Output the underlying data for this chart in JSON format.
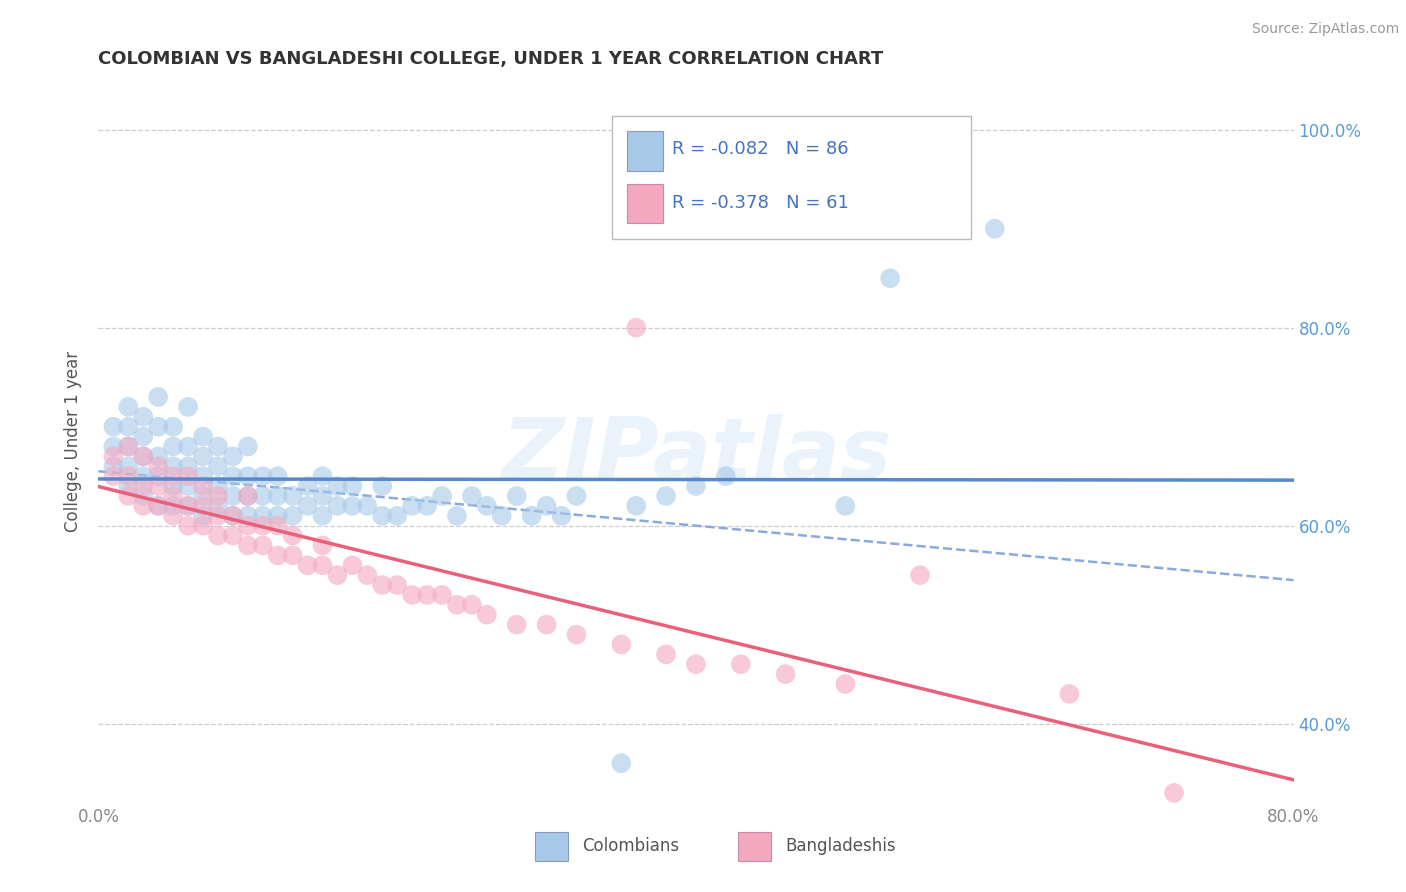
{
  "title": "COLOMBIAN VS BANGLADESHI COLLEGE, UNDER 1 YEAR CORRELATION CHART",
  "source": "Source: ZipAtlas.com",
  "ylabel": "College, Under 1 year",
  "xlim_min": 0.0,
  "xlim_max": 0.8,
  "ylim_min": 0.32,
  "ylim_max": 1.05,
  "yticks": [
    0.4,
    0.6,
    0.8,
    1.0
  ],
  "right_yticklabels": [
    "40.0%",
    "60.0%",
    "80.0%",
    "100.0%"
  ],
  "colombian_R": -0.082,
  "colombian_N": 86,
  "bangladeshi_R": -0.378,
  "bangladeshi_N": 61,
  "colombian_color": "#a8c8e8",
  "bangladeshi_color": "#f4a8c0",
  "colombian_line_color": "#5588cc",
  "bangladeshi_line_color": "#e8607a",
  "dashed_line_color": "#88aadd",
  "watermark": "ZIPatlas",
  "background_color": "#ffffff",
  "grid_color": "#cccccc",
  "right_tick_color": "#5b9bd5",
  "legend_text_color": "#4472c4",
  "title_color": "#333333",
  "source_color": "#999999",
  "axis_label_color": "#555555",
  "tick_label_color": "#888888",
  "col_scatter_x": [
    0.01,
    0.01,
    0.01,
    0.02,
    0.02,
    0.02,
    0.02,
    0.02,
    0.03,
    0.03,
    0.03,
    0.03,
    0.03,
    0.04,
    0.04,
    0.04,
    0.04,
    0.04,
    0.05,
    0.05,
    0.05,
    0.05,
    0.05,
    0.06,
    0.06,
    0.06,
    0.06,
    0.06,
    0.07,
    0.07,
    0.07,
    0.07,
    0.07,
    0.08,
    0.08,
    0.08,
    0.08,
    0.09,
    0.09,
    0.09,
    0.09,
    0.1,
    0.1,
    0.1,
    0.1,
    0.11,
    0.11,
    0.11,
    0.12,
    0.12,
    0.12,
    0.13,
    0.13,
    0.14,
    0.14,
    0.15,
    0.15,
    0.15,
    0.16,
    0.16,
    0.17,
    0.17,
    0.18,
    0.19,
    0.19,
    0.2,
    0.21,
    0.22,
    0.23,
    0.24,
    0.25,
    0.26,
    0.27,
    0.28,
    0.29,
    0.3,
    0.31,
    0.32,
    0.35,
    0.36,
    0.38,
    0.4,
    0.42,
    0.5,
    0.53,
    0.6
  ],
  "col_scatter_y": [
    0.66,
    0.68,
    0.7,
    0.64,
    0.66,
    0.68,
    0.7,
    0.72,
    0.63,
    0.65,
    0.67,
    0.69,
    0.71,
    0.62,
    0.65,
    0.67,
    0.7,
    0.73,
    0.62,
    0.64,
    0.66,
    0.68,
    0.7,
    0.62,
    0.64,
    0.66,
    0.68,
    0.72,
    0.61,
    0.63,
    0.65,
    0.67,
    0.69,
    0.62,
    0.64,
    0.66,
    0.68,
    0.61,
    0.63,
    0.65,
    0.67,
    0.61,
    0.63,
    0.65,
    0.68,
    0.61,
    0.63,
    0.65,
    0.61,
    0.63,
    0.65,
    0.61,
    0.63,
    0.62,
    0.64,
    0.61,
    0.63,
    0.65,
    0.62,
    0.64,
    0.62,
    0.64,
    0.62,
    0.61,
    0.64,
    0.61,
    0.62,
    0.62,
    0.63,
    0.61,
    0.63,
    0.62,
    0.61,
    0.63,
    0.61,
    0.62,
    0.61,
    0.63,
    0.36,
    0.62,
    0.63,
    0.64,
    0.65,
    0.62,
    0.85,
    0.9
  ],
  "ban_scatter_x": [
    0.01,
    0.01,
    0.02,
    0.02,
    0.02,
    0.03,
    0.03,
    0.03,
    0.04,
    0.04,
    0.04,
    0.05,
    0.05,
    0.05,
    0.06,
    0.06,
    0.06,
    0.07,
    0.07,
    0.07,
    0.08,
    0.08,
    0.08,
    0.09,
    0.09,
    0.1,
    0.1,
    0.1,
    0.11,
    0.11,
    0.12,
    0.12,
    0.13,
    0.13,
    0.14,
    0.15,
    0.15,
    0.16,
    0.17,
    0.18,
    0.19,
    0.2,
    0.21,
    0.22,
    0.23,
    0.24,
    0.25,
    0.26,
    0.28,
    0.3,
    0.32,
    0.35,
    0.36,
    0.38,
    0.4,
    0.43,
    0.46,
    0.5,
    0.55,
    0.65,
    0.72
  ],
  "ban_scatter_y": [
    0.65,
    0.67,
    0.63,
    0.65,
    0.68,
    0.62,
    0.64,
    0.67,
    0.62,
    0.64,
    0.66,
    0.61,
    0.63,
    0.65,
    0.6,
    0.62,
    0.65,
    0.6,
    0.62,
    0.64,
    0.59,
    0.61,
    0.63,
    0.59,
    0.61,
    0.58,
    0.6,
    0.63,
    0.58,
    0.6,
    0.57,
    0.6,
    0.57,
    0.59,
    0.56,
    0.56,
    0.58,
    0.55,
    0.56,
    0.55,
    0.54,
    0.54,
    0.53,
    0.53,
    0.53,
    0.52,
    0.52,
    0.51,
    0.5,
    0.5,
    0.49,
    0.48,
    0.8,
    0.47,
    0.46,
    0.46,
    0.45,
    0.44,
    0.55,
    0.43,
    0.33
  ]
}
